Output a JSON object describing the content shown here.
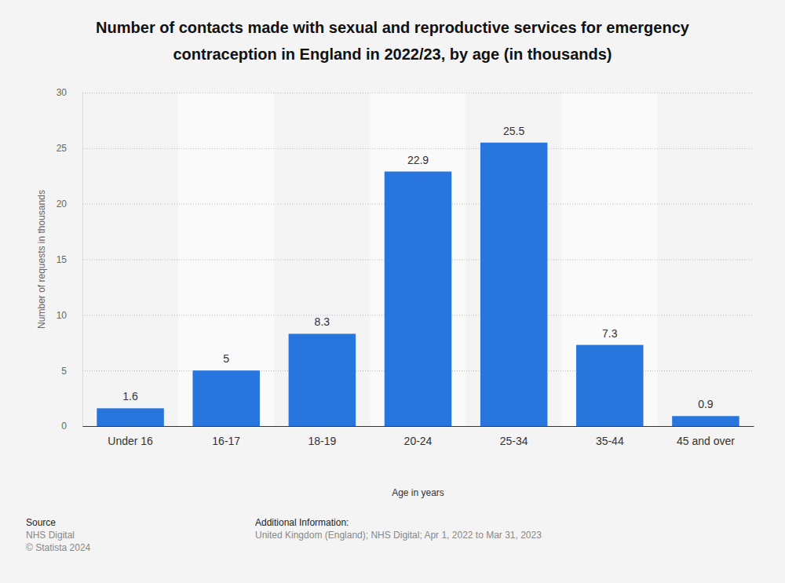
{
  "chart_data": {
    "type": "bar",
    "title": "Number of contacts made with sexual and reproductive services for emergency contraception in England in 2022/23, by age (in thousands)",
    "x_label": "Age in years",
    "y_label": "Number of requests in thousands",
    "categories": [
      "Under 16",
      "16-17",
      "18-19",
      "20-24",
      "25-34",
      "35-44",
      "45 and over"
    ],
    "values": [
      1.6,
      5,
      8.3,
      22.9,
      25.5,
      7.3,
      0.9
    ],
    "color": "#2876dd",
    "ylim": [
      0,
      30
    ],
    "yticks": [
      0,
      5,
      10,
      15,
      20,
      25,
      30
    ],
    "grid": true,
    "data_labels": true,
    "source_label": "Source",
    "source": "NHS Digital",
    "copyright": "© Statista 2024",
    "info_label": "Additional Information:",
    "info": "United Kingdom (England); NHS Digital; Apr 1, 2022 to Mar 31, 2023"
  }
}
